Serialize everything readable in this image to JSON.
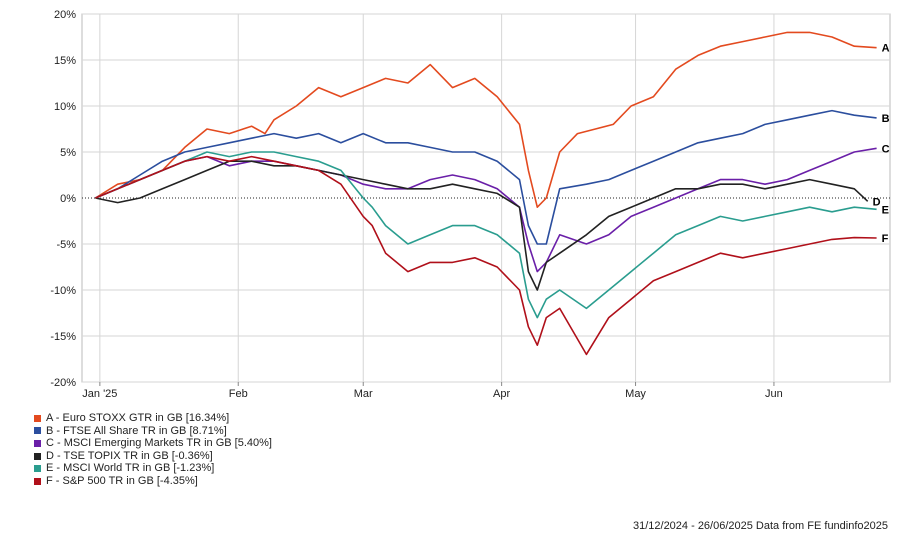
{
  "chart_data": {
    "type": "line",
    "x_ticks": [
      "Jan '25",
      "Feb",
      "Mar",
      "Apr",
      "May",
      "Jun"
    ],
    "x_tick_days": [
      1,
      32,
      60,
      91,
      121,
      152
    ],
    "x_range_days": [
      -3,
      178
    ],
    "ylim": [
      -20,
      20
    ],
    "y_ticks": [
      20,
      15,
      10,
      5,
      0,
      -5,
      -10,
      -15,
      -20
    ],
    "y_tick_labels": [
      "20%",
      "15%",
      "10%",
      "5%",
      "0%",
      "-5%",
      "-10%",
      "-15%",
      "-20%"
    ],
    "grid": true,
    "zero_line": "dotted",
    "series": [
      {
        "name": "A - Euro STOXX GTR in GB [16.34%]",
        "end_label": "A",
        "color": "#e34a1f",
        "points": [
          [
            0,
            0
          ],
          [
            5,
            1.5
          ],
          [
            10,
            2
          ],
          [
            15,
            3
          ],
          [
            20,
            5.5
          ],
          [
            25,
            7.5
          ],
          [
            30,
            7
          ],
          [
            35,
            7.8
          ],
          [
            38,
            7
          ],
          [
            40,
            8.5
          ],
          [
            45,
            10
          ],
          [
            50,
            12
          ],
          [
            55,
            11
          ],
          [
            60,
            12
          ],
          [
            65,
            13
          ],
          [
            70,
            12.5
          ],
          [
            75,
            14.5
          ],
          [
            80,
            12
          ],
          [
            85,
            13
          ],
          [
            90,
            11
          ],
          [
            95,
            8
          ],
          [
            97,
            3
          ],
          [
            99,
            -1
          ],
          [
            101,
            0
          ],
          [
            104,
            5
          ],
          [
            108,
            7
          ],
          [
            112,
            7.5
          ],
          [
            116,
            8
          ],
          [
            120,
            10
          ],
          [
            125,
            11
          ],
          [
            130,
            14
          ],
          [
            135,
            15.5
          ],
          [
            140,
            16.5
          ],
          [
            145,
            17
          ],
          [
            150,
            17.5
          ],
          [
            155,
            18
          ],
          [
            160,
            18
          ],
          [
            165,
            17.5
          ],
          [
            170,
            16.5
          ],
          [
            175,
            16.34
          ]
        ]
      },
      {
        "name": "B - FTSE All Share TR in GB [8.71%]",
        "end_label": "B",
        "color": "#2b4e9e",
        "points": [
          [
            0,
            0
          ],
          [
            5,
            1
          ],
          [
            10,
            2.5
          ],
          [
            15,
            4
          ],
          [
            20,
            5
          ],
          [
            25,
            5.5
          ],
          [
            30,
            6
          ],
          [
            35,
            6.5
          ],
          [
            40,
            7
          ],
          [
            45,
            6.5
          ],
          [
            50,
            7
          ],
          [
            55,
            6
          ],
          [
            60,
            7
          ],
          [
            65,
            6
          ],
          [
            70,
            6
          ],
          [
            75,
            5.5
          ],
          [
            80,
            5
          ],
          [
            85,
            5
          ],
          [
            90,
            4
          ],
          [
            95,
            2
          ],
          [
            97,
            -3
          ],
          [
            99,
            -5
          ],
          [
            101,
            -5
          ],
          [
            104,
            1
          ],
          [
            110,
            1.5
          ],
          [
            115,
            2
          ],
          [
            120,
            3
          ],
          [
            125,
            4
          ],
          [
            130,
            5
          ],
          [
            135,
            6
          ],
          [
            140,
            6.5
          ],
          [
            145,
            7
          ],
          [
            150,
            8
          ],
          [
            155,
            8.5
          ],
          [
            160,
            9
          ],
          [
            165,
            9.5
          ],
          [
            170,
            9
          ],
          [
            175,
            8.71
          ]
        ]
      },
      {
        "name": "C - MSCI Emerging Markets TR in GB [5.40%]",
        "end_label": "C",
        "color": "#6a1fa8",
        "points": [
          [
            0,
            0
          ],
          [
            5,
            1
          ],
          [
            10,
            2
          ],
          [
            15,
            3
          ],
          [
            20,
            4
          ],
          [
            25,
            4.5
          ],
          [
            30,
            3.5
          ],
          [
            35,
            4
          ],
          [
            40,
            4
          ],
          [
            45,
            3.5
          ],
          [
            50,
            3
          ],
          [
            55,
            2.5
          ],
          [
            60,
            1.5
          ],
          [
            65,
            1
          ],
          [
            70,
            1
          ],
          [
            75,
            2
          ],
          [
            80,
            2.5
          ],
          [
            85,
            2
          ],
          [
            90,
            1
          ],
          [
            95,
            -1
          ],
          [
            97,
            -5
          ],
          [
            99,
            -8
          ],
          [
            101,
            -7
          ],
          [
            104,
            -4
          ],
          [
            110,
            -5
          ],
          [
            115,
            -4
          ],
          [
            120,
            -2
          ],
          [
            125,
            -1
          ],
          [
            130,
            0
          ],
          [
            135,
            1
          ],
          [
            140,
            2
          ],
          [
            145,
            2
          ],
          [
            150,
            1.5
          ],
          [
            155,
            2
          ],
          [
            160,
            3
          ],
          [
            165,
            4
          ],
          [
            170,
            5
          ],
          [
            175,
            5.4
          ]
        ]
      },
      {
        "name": "D - TSE TOPIX TR in GB [-0.36%]",
        "end_label": "D",
        "color": "#222222",
        "points": [
          [
            0,
            0
          ],
          [
            5,
            -0.5
          ],
          [
            10,
            0
          ],
          [
            15,
            1
          ],
          [
            20,
            2
          ],
          [
            25,
            3
          ],
          [
            30,
            4
          ],
          [
            35,
            4
          ],
          [
            40,
            3.5
          ],
          [
            45,
            3.5
          ],
          [
            50,
            3
          ],
          [
            55,
            2.5
          ],
          [
            60,
            2
          ],
          [
            65,
            1.5
          ],
          [
            70,
            1
          ],
          [
            75,
            1
          ],
          [
            80,
            1.5
          ],
          [
            85,
            1
          ],
          [
            90,
            0.5
          ],
          [
            95,
            -1
          ],
          [
            97,
            -8
          ],
          [
            99,
            -10
          ],
          [
            101,
            -7
          ],
          [
            104,
            -6
          ],
          [
            110,
            -4
          ],
          [
            115,
            -2
          ],
          [
            120,
            -1
          ],
          [
            125,
            0
          ],
          [
            130,
            1
          ],
          [
            135,
            1
          ],
          [
            140,
            1.5
          ],
          [
            145,
            1.5
          ],
          [
            150,
            1
          ],
          [
            155,
            1.5
          ],
          [
            160,
            2
          ],
          [
            165,
            1.5
          ],
          [
            170,
            1
          ],
          [
            173,
            -0.36
          ]
        ]
      },
      {
        "name": "E - MSCI World TR in GB [-1.23%]",
        "end_label": "E",
        "color": "#2a9d8f",
        "points": [
          [
            0,
            0
          ],
          [
            5,
            1
          ],
          [
            10,
            2
          ],
          [
            15,
            3
          ],
          [
            20,
            4
          ],
          [
            25,
            5
          ],
          [
            30,
            4.5
          ],
          [
            35,
            5
          ],
          [
            40,
            5
          ],
          [
            45,
            4.5
          ],
          [
            50,
            4
          ],
          [
            55,
            3
          ],
          [
            60,
            0
          ],
          [
            62,
            -1
          ],
          [
            65,
            -3
          ],
          [
            70,
            -5
          ],
          [
            75,
            -4
          ],
          [
            80,
            -3
          ],
          [
            85,
            -3
          ],
          [
            90,
            -4
          ],
          [
            95,
            -6
          ],
          [
            97,
            -11
          ],
          [
            99,
            -13
          ],
          [
            101,
            -11
          ],
          [
            104,
            -10
          ],
          [
            110,
            -12
          ],
          [
            115,
            -10
          ],
          [
            120,
            -8
          ],
          [
            125,
            -6
          ],
          [
            130,
            -4
          ],
          [
            135,
            -3
          ],
          [
            140,
            -2
          ],
          [
            145,
            -2.5
          ],
          [
            150,
            -2
          ],
          [
            155,
            -1.5
          ],
          [
            160,
            -1
          ],
          [
            165,
            -1.5
          ],
          [
            170,
            -1
          ],
          [
            175,
            -1.23
          ]
        ]
      },
      {
        "name": "F - S&P 500 TR in GB [-4.35%]",
        "end_label": "F",
        "color": "#b0101a",
        "points": [
          [
            0,
            0
          ],
          [
            5,
            1
          ],
          [
            10,
            2
          ],
          [
            15,
            3
          ],
          [
            20,
            4
          ],
          [
            25,
            4.5
          ],
          [
            30,
            4
          ],
          [
            35,
            4.5
          ],
          [
            40,
            4
          ],
          [
            45,
            3.5
          ],
          [
            50,
            3
          ],
          [
            55,
            1.5
          ],
          [
            60,
            -2
          ],
          [
            62,
            -3
          ],
          [
            65,
            -6
          ],
          [
            70,
            -8
          ],
          [
            75,
            -7
          ],
          [
            80,
            -7
          ],
          [
            85,
            -6.5
          ],
          [
            90,
            -7.5
          ],
          [
            95,
            -10
          ],
          [
            97,
            -14
          ],
          [
            99,
            -16
          ],
          [
            101,
            -13
          ],
          [
            104,
            -12
          ],
          [
            110,
            -17
          ],
          [
            115,
            -13
          ],
          [
            120,
            -11
          ],
          [
            125,
            -9
          ],
          [
            130,
            -8
          ],
          [
            135,
            -7
          ],
          [
            140,
            -6
          ],
          [
            145,
            -6.5
          ],
          [
            150,
            -6
          ],
          [
            155,
            -5.5
          ],
          [
            160,
            -5
          ],
          [
            165,
            -4.5
          ],
          [
            170,
            -4.3
          ],
          [
            175,
            -4.35
          ]
        ]
      }
    ]
  },
  "footer": "31/12/2024 - 26/06/2025 Data from FE fundinfo2025"
}
